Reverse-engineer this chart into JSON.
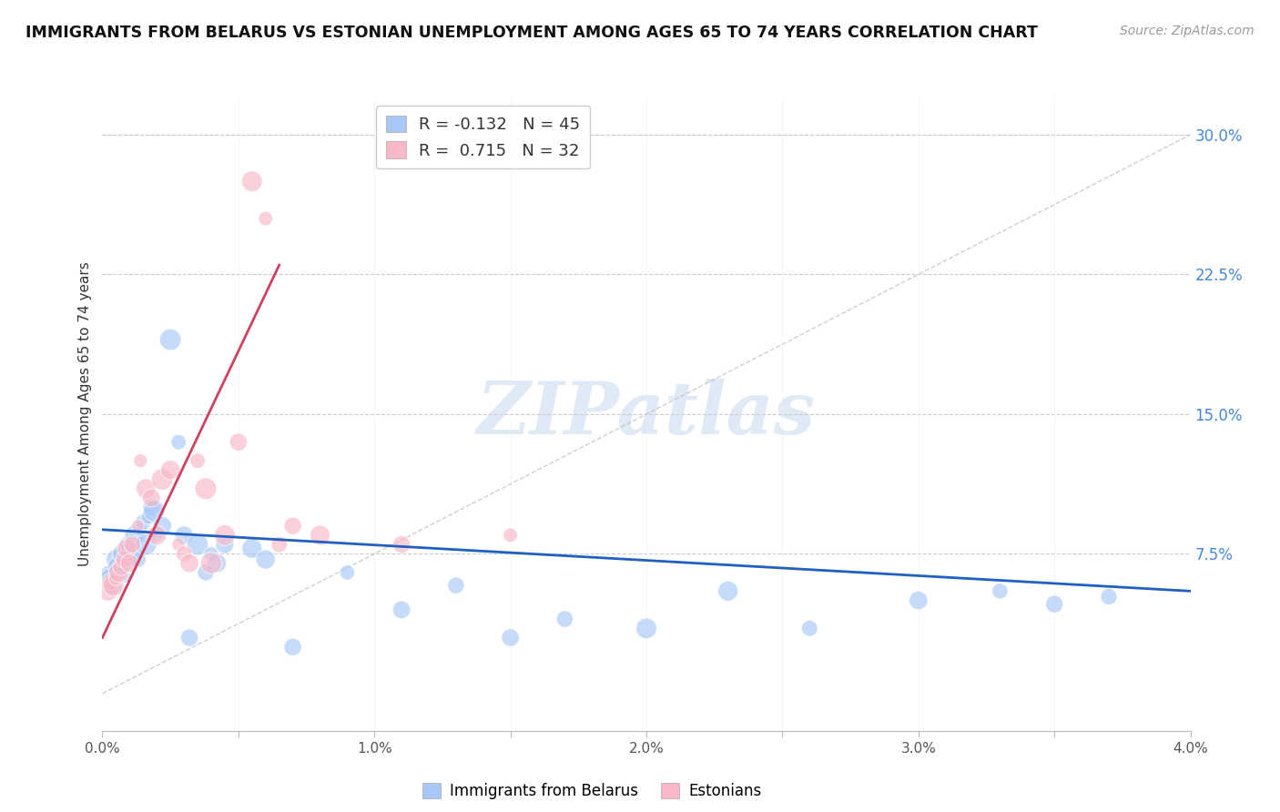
{
  "title": "IMMIGRANTS FROM BELARUS VS ESTONIAN UNEMPLOYMENT AMONG AGES 65 TO 74 YEARS CORRELATION CHART",
  "source": "Source: ZipAtlas.com",
  "ylabel": "Unemployment Among Ages 65 to 74 years",
  "x_ticks": [
    0.0,
    0.5,
    1.0,
    1.5,
    2.0,
    2.5,
    3.0,
    3.5,
    4.0
  ],
  "x_tick_labels": [
    "0.0%",
    "",
    "1.0%",
    "",
    "2.0%",
    "",
    "3.0%",
    "",
    "4.0%"
  ],
  "y_ticks_right": [
    0.0,
    7.5,
    15.0,
    22.5,
    30.0
  ],
  "y_tick_labels_right": [
    "",
    "7.5%",
    "15.0%",
    "22.5%",
    "30.0%"
  ],
  "xlim": [
    0.0,
    4.0
  ],
  "ylim": [
    -2.0,
    32.0
  ],
  "blue_R": -0.132,
  "blue_N": 45,
  "pink_R": 0.715,
  "pink_N": 32,
  "blue_label": "Immigrants from Belarus",
  "pink_label": "Estonians",
  "blue_scatter_color": "#A8C8F8",
  "pink_scatter_color": "#F8B8C8",
  "trend_blue_color": "#2060C0",
  "trend_pink_color": "#D04060",
  "watermark": "ZIPatlas",
  "watermark_color": "#C8D8F0",
  "blue_x": [
    0.02,
    0.03,
    0.04,
    0.05,
    0.06,
    0.07,
    0.08,
    0.08,
    0.09,
    0.1,
    0.11,
    0.12,
    0.13,
    0.14,
    0.15,
    0.16,
    0.17,
    0.18,
    0.19,
    0.2,
    0.22,
    0.25,
    0.28,
    0.3,
    0.35,
    0.4,
    0.45,
    0.55,
    0.6,
    0.7,
    0.9,
    1.1,
    1.3,
    1.5,
    1.7,
    2.0,
    2.3,
    2.6,
    3.0,
    3.3,
    3.5,
    3.7,
    0.42,
    0.38,
    0.32
  ],
  "blue_y": [
    6.5,
    6.2,
    5.8,
    7.2,
    6.8,
    7.5,
    7.0,
    6.3,
    8.0,
    7.8,
    7.5,
    8.5,
    7.2,
    8.8,
    9.2,
    8.0,
    9.5,
    10.0,
    9.8,
    8.5,
    9.0,
    19.0,
    13.5,
    8.5,
    8.0,
    7.5,
    8.0,
    7.8,
    7.2,
    2.5,
    6.5,
    4.5,
    5.8,
    3.0,
    4.0,
    3.5,
    5.5,
    3.5,
    5.0,
    5.5,
    4.8,
    5.2,
    7.0,
    6.5,
    3.0
  ],
  "pink_x": [
    0.02,
    0.03,
    0.04,
    0.05,
    0.06,
    0.07,
    0.08,
    0.09,
    0.1,
    0.11,
    0.13,
    0.14,
    0.16,
    0.18,
    0.2,
    0.22,
    0.25,
    0.28,
    0.3,
    0.32,
    0.35,
    0.38,
    0.4,
    0.45,
    0.5,
    0.55,
    0.6,
    0.65,
    0.7,
    0.8,
    1.1,
    1.5
  ],
  "pink_y": [
    5.5,
    6.0,
    5.8,
    6.2,
    6.5,
    6.8,
    7.2,
    7.8,
    7.0,
    8.0,
    9.0,
    12.5,
    11.0,
    10.5,
    8.5,
    11.5,
    12.0,
    8.0,
    7.5,
    7.0,
    12.5,
    11.0,
    7.0,
    8.5,
    13.5,
    27.5,
    25.5,
    8.0,
    9.0,
    8.5,
    8.0,
    8.5
  ],
  "blue_trend_x": [
    0.0,
    4.0
  ],
  "blue_trend_y": [
    8.8,
    5.5
  ],
  "pink_trend_x": [
    0.0,
    0.65
  ],
  "pink_trend_y": [
    3.0,
    23.0
  ],
  "ref_line_x": [
    0.0,
    4.0
  ],
  "ref_line_y": [
    0.0,
    30.0
  ]
}
